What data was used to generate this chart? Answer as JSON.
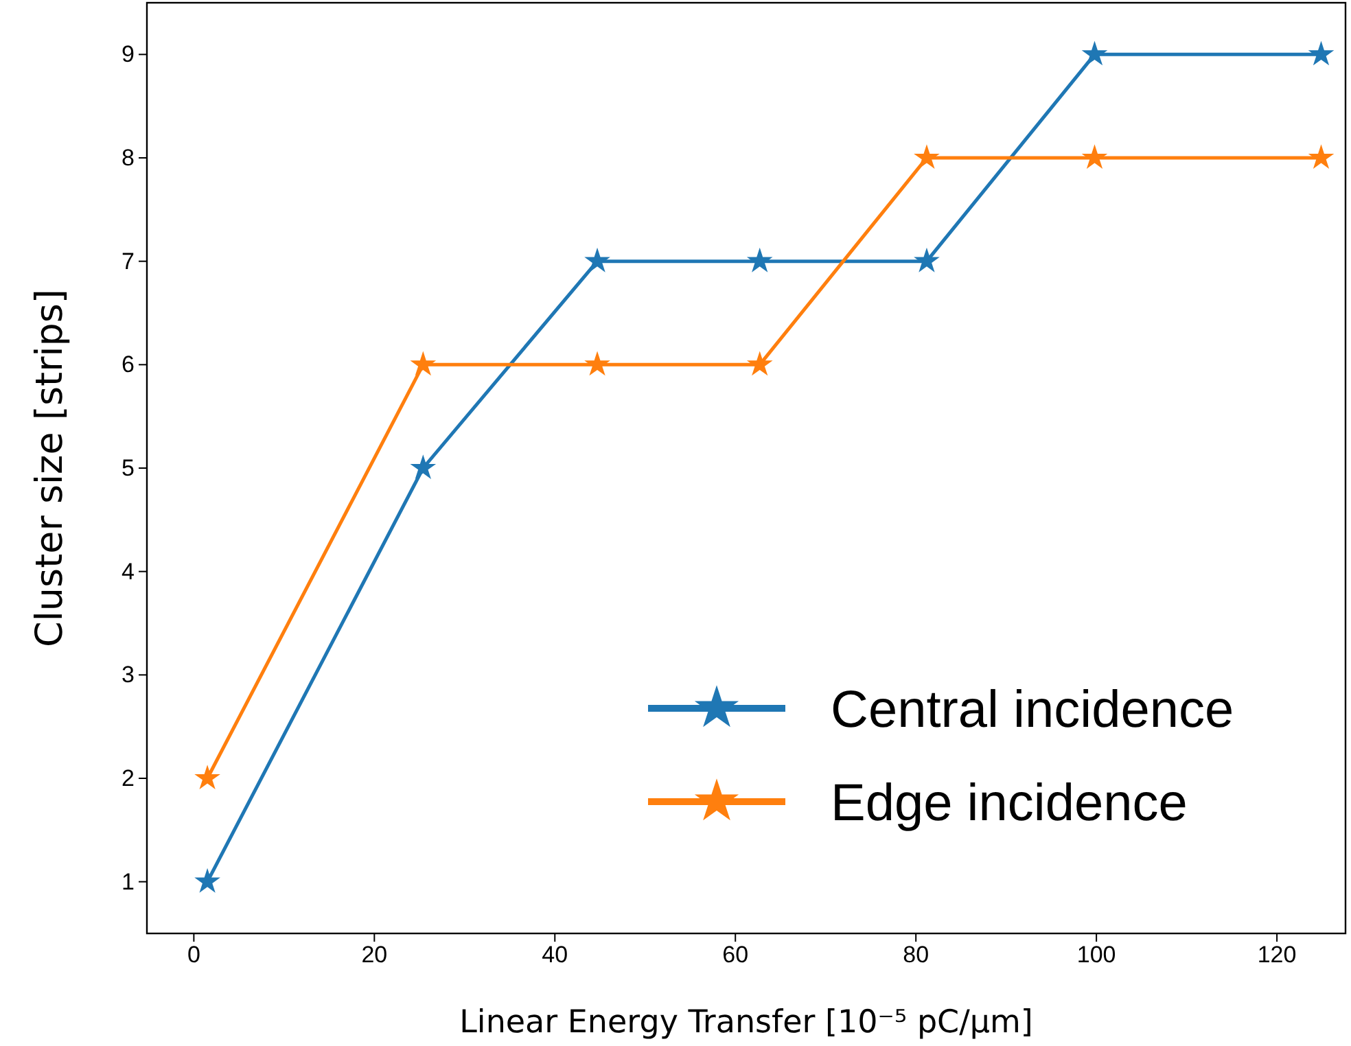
{
  "chart_data": {
    "type": "line",
    "xlabel": "Linear Energy Transfer [10⁻⁵ pC/μm]",
    "ylabel": "Cluster size [strips]",
    "x": [
      1.5,
      25.4,
      44.7,
      62.7,
      81.2,
      99.8,
      124.9
    ],
    "series": [
      {
        "name": "Central incidence",
        "color": "#1f77b4",
        "values": [
          1,
          5,
          7,
          7,
          7,
          9,
          9
        ]
      },
      {
        "name": "Edge incidence",
        "color": "#ff7f0e",
        "values": [
          2,
          6,
          6,
          6,
          8,
          8,
          8
        ]
      }
    ],
    "xlim": [
      -5.2,
      127.6
    ],
    "ylim": [
      0.5,
      9.5
    ],
    "xticks": [
      0,
      20,
      40,
      60,
      80,
      100,
      120
    ],
    "yticks": [
      1,
      2,
      3,
      4,
      5,
      6,
      7,
      8,
      9
    ],
    "marker": "star",
    "line_style": "solid",
    "legend": "bottom right",
    "grid": false
  }
}
